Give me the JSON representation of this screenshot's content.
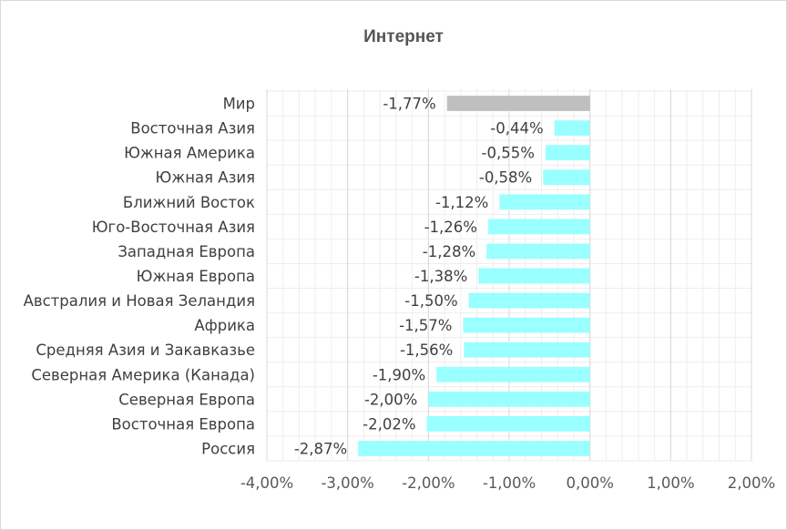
{
  "chart_data": {
    "type": "bar",
    "orientation": "horizontal",
    "title": "Интернет",
    "categories": [
      "Мир",
      "Восточная Азия",
      "Южная Америка",
      "Южная Азия",
      "Ближний Восток",
      "Юго-Восточная Азия",
      "Западная Европа",
      "Южная Европа",
      "Австралия и Новая Зеландия",
      "Африка",
      "Средняя Азия и Закавказье",
      "Северная Америка (Канада)",
      "Северная Европа",
      "Восточная Европа",
      "Россия"
    ],
    "values": [
      -1.77,
      -0.44,
      -0.55,
      -0.58,
      -1.12,
      -1.26,
      -1.28,
      -1.38,
      -1.5,
      -1.57,
      -1.56,
      -1.9,
      -2.0,
      -2.02,
      -2.87
    ],
    "data_labels": [
      "-1,77%",
      "-0,44%",
      "-0,55%",
      "-0,58%",
      "-1,12%",
      "-1,26%",
      "-1,28%",
      "-1,38%",
      "-1,50%",
      "-1,57%",
      "-1,56%",
      "-1,90%",
      "-2,00%",
      "-2,02%",
      "-2,87%"
    ],
    "xlim": [
      -4,
      2
    ],
    "x_ticks": [
      -4,
      -3,
      -2,
      -1,
      0,
      1,
      2
    ],
    "x_tick_labels": [
      "-4,00%",
      "-3,00%",
      "-2,00%",
      "-1,00%",
      "0,00%",
      "1,00%",
      "2,00%"
    ],
    "xlabel": "",
    "ylabel": "",
    "grid": true,
    "legend": "none",
    "colors": {
      "highlight": "#bfbfbf",
      "bar": "#99ffff",
      "grid_major": "#d9d9d9",
      "grid_minor": "#eeeeee"
    }
  }
}
